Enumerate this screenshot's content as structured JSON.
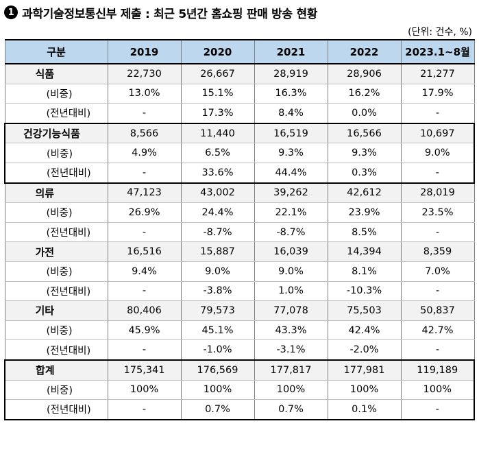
{
  "title": {
    "badge": "1",
    "text": "과학기술정보통신부 제출 : 최근 5년간 홈쇼핑 판매 방송 현황"
  },
  "unit": "(단위: 건수, %)",
  "header": [
    "구분",
    "2019",
    "2020",
    "2021",
    "2022",
    "2023.1~8월"
  ],
  "sub_labels": {
    "share": "(비중)",
    "yoy": "(전년대비)"
  },
  "groups": [
    {
      "name": "식품",
      "boxed": false,
      "counts": [
        "22,730",
        "26,667",
        "28,919",
        "28,906",
        "21,277"
      ],
      "share": [
        "13.0%",
        "15.1%",
        "16.3%",
        "16.2%",
        "17.9%"
      ],
      "yoy": [
        "-",
        "17.3%",
        "8.4%",
        "0.0%",
        "-"
      ]
    },
    {
      "name": "건강기능식품",
      "boxed": true,
      "counts": [
        "8,566",
        "11,440",
        "16,519",
        "16,566",
        "10,697"
      ],
      "share": [
        "4.9%",
        "6.5%",
        "9.3%",
        "9.3%",
        "9.0%"
      ],
      "yoy": [
        "-",
        "33.6%",
        "44.4%",
        "0.3%",
        "-"
      ]
    },
    {
      "name": "의류",
      "boxed": false,
      "counts": [
        "47,123",
        "43,002",
        "39,262",
        "42,612",
        "28,019"
      ],
      "share": [
        "26.9%",
        "24.4%",
        "22.1%",
        "23.9%",
        "23.5%"
      ],
      "yoy": [
        "-",
        "-8.7%",
        "-8.7%",
        "8.5%",
        "-"
      ]
    },
    {
      "name": "가전",
      "boxed": false,
      "counts": [
        "16,516",
        "15,887",
        "16,039",
        "14,394",
        "8,359"
      ],
      "share": [
        "9.4%",
        "9.0%",
        "9.0%",
        "8.1%",
        "7.0%"
      ],
      "yoy": [
        "-",
        "-3.8%",
        "1.0%",
        "-10.3%",
        "-"
      ]
    },
    {
      "name": "기타",
      "boxed": false,
      "counts": [
        "80,406",
        "79,573",
        "77,078",
        "75,503",
        "50,837"
      ],
      "share": [
        "45.9%",
        "45.1%",
        "43.3%",
        "42.4%",
        "42.7%"
      ],
      "yoy": [
        "-",
        "-1.0%",
        "-3.1%",
        "-2.0%",
        "-"
      ]
    },
    {
      "name": "합계",
      "boxed": true,
      "counts": [
        "175,341",
        "176,569",
        "177,817",
        "177,981",
        "119,189"
      ],
      "share": [
        "100%",
        "100%",
        "100%",
        "100%",
        "100%"
      ],
      "yoy": [
        "-",
        "0.7%",
        "0.7%",
        "0.1%",
        "-"
      ]
    }
  ]
}
